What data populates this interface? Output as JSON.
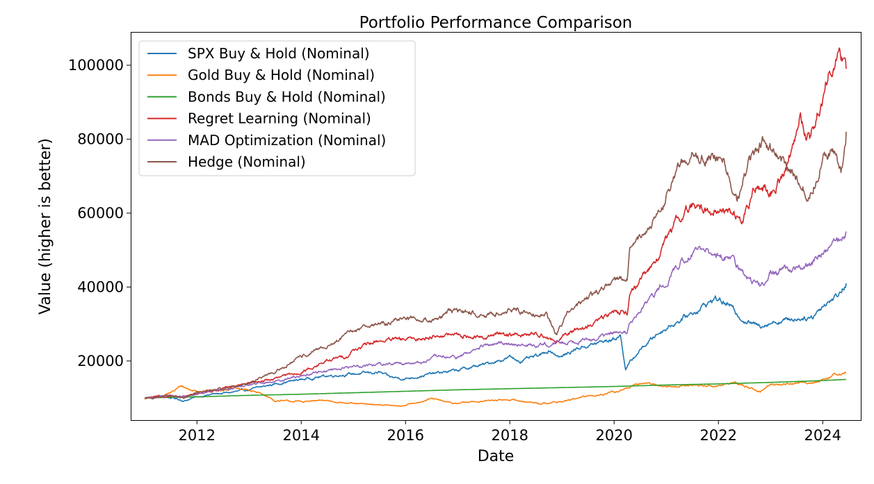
{
  "chart_data": {
    "type": "line",
    "title": "Portfolio Performance Comparison",
    "xlabel": "Date",
    "ylabel": "Value (higher is better)",
    "xlim": [
      2010.73,
      2024.73
    ],
    "ylim": [
      4000,
      109000
    ],
    "xticks": [
      2012,
      2014,
      2016,
      2018,
      2020,
      2022,
      2024
    ],
    "xtick_labels": [
      "2012",
      "2014",
      "2016",
      "2018",
      "2020",
      "2022",
      "2024"
    ],
    "yticks": [
      20000,
      40000,
      60000,
      80000,
      100000
    ],
    "ytick_labels": [
      "20000",
      "40000",
      "60000",
      "80000",
      "100000"
    ],
    "grid": false,
    "legend_position": "top-left",
    "series": [
      {
        "name": "SPX Buy & Hold (Nominal)",
        "color": "#1f77b4",
        "x": [
          2011.0,
          2011.3,
          2011.6,
          2011.75,
          2012.0,
          2012.3,
          2012.6,
          2013.0,
          2013.5,
          2014.0,
          2014.5,
          2015.0,
          2015.5,
          2015.7,
          2016.0,
          2016.5,
          2017.0,
          2017.5,
          2018.0,
          2018.2,
          2018.6,
          2018.75,
          2018.98,
          2019.3,
          2019.6,
          2020.0,
          2020.12,
          2020.22,
          2020.5,
          2020.8,
          2021.0,
          2021.5,
          2021.95,
          2022.2,
          2022.5,
          2022.75,
          2023.0,
          2023.5,
          2023.8,
          2024.0,
          2024.3,
          2024.45
        ],
        "values": [
          10000,
          10500,
          9800,
          9200,
          10300,
          11000,
          11400,
          12200,
          13800,
          15000,
          16000,
          16500,
          16900,
          15600,
          15200,
          16500,
          17500,
          19000,
          21000,
          20000,
          21500,
          23000,
          21000,
          23500,
          24500,
          26000,
          27000,
          18000,
          23000,
          27000,
          29000,
          33000,
          37000,
          35000,
          31000,
          29500,
          30500,
          31500,
          32000,
          35000,
          38000,
          41000
        ]
      },
      {
        "name": "Gold Buy & Hold (Nominal)",
        "color": "#ff7f0e",
        "x": [
          2011.0,
          2011.3,
          2011.55,
          2011.7,
          2011.9,
          2012.2,
          2012.7,
          2013.0,
          2013.3,
          2013.5,
          2014.0,
          2014.5,
          2015.0,
          2015.5,
          2015.9,
          2016.5,
          2016.9,
          2017.5,
          2018.0,
          2018.6,
          2019.0,
          2019.5,
          2020.0,
          2020.6,
          2020.8,
          2021.0,
          2021.5,
          2022.0,
          2022.3,
          2022.8,
          2023.0,
          2023.5,
          2024.0,
          2024.25,
          2024.45
        ],
        "values": [
          9700,
          10400,
          11800,
          13300,
          12000,
          12000,
          12500,
          12100,
          10800,
          9200,
          9000,
          9300,
          8400,
          8200,
          7700,
          9800,
          8500,
          9200,
          9500,
          8500,
          9000,
          10500,
          11500,
          14200,
          13500,
          13000,
          13500,
          13200,
          14200,
          11800,
          13500,
          14000,
          14500,
          16500,
          16800
        ]
      },
      {
        "name": "Bonds Buy & Hold (Nominal)",
        "color": "#2ca02c",
        "x": [
          2011.0,
          2012.0,
          2013.0,
          2014.0,
          2015.0,
          2016.0,
          2017.0,
          2018.0,
          2019.0,
          2020.0,
          2021.0,
          2022.0,
          2023.0,
          2024.0,
          2024.45
        ],
        "values": [
          10000,
          10300,
          10700,
          11000,
          11400,
          11800,
          12200,
          12500,
          12800,
          13100,
          13500,
          13800,
          14200,
          14700,
          15000
        ]
      },
      {
        "name": "Regret Learning (Nominal)",
        "color": "#d62728",
        "x": [
          2011.0,
          2011.5,
          2011.75,
          2012.0,
          2012.5,
          2013.0,
          2013.5,
          2014.0,
          2014.5,
          2014.9,
          2015.0,
          2015.5,
          2015.9,
          2016.3,
          2016.6,
          2017.0,
          2017.5,
          2017.8,
          2018.2,
          2018.6,
          2018.9,
          2019.2,
          2019.6,
          2020.0,
          2020.25,
          2020.3,
          2020.6,
          2020.9,
          2021.2,
          2021.5,
          2021.9,
          2022.2,
          2022.45,
          2022.75,
          2023.0,
          2023.3,
          2023.55,
          2023.75,
          2024.0,
          2024.25,
          2024.45
        ],
        "values": [
          10000,
          10500,
          10200,
          11200,
          12500,
          14000,
          15200,
          17000,
          20000,
          21500,
          23000,
          25500,
          25700,
          26000,
          27000,
          27000,
          26200,
          27500,
          27000,
          27500,
          25000,
          28000,
          30000,
          33500,
          33500,
          38000,
          43000,
          50000,
          58000,
          62000,
          60500,
          60500,
          58000,
          68000,
          65000,
          72000,
          86000,
          80000,
          92000,
          104000,
          99000
        ]
      },
      {
        "name": "MAD Optimization (Nominal)",
        "color": "#9467bd",
        "x": [
          2011.0,
          2011.5,
          2011.75,
          2012.0,
          2012.5,
          2013.0,
          2013.5,
          2014.0,
          2014.5,
          2015.0,
          2015.5,
          2015.9,
          2016.3,
          2016.6,
          2017.0,
          2017.5,
          2018.0,
          2018.3,
          2018.6,
          2019.0,
          2019.3,
          2019.6,
          2020.0,
          2020.25,
          2020.3,
          2020.6,
          2021.0,
          2021.5,
          2021.9,
          2022.2,
          2022.5,
          2022.8,
          2023.0,
          2023.5,
          2023.8,
          2024.0,
          2024.3,
          2024.45
        ],
        "values": [
          10000,
          10500,
          10200,
          11000,
          12200,
          13500,
          14600,
          16000,
          17500,
          18500,
          19200,
          19500,
          19500,
          21000,
          21000,
          24000,
          25000,
          24000,
          24500,
          25000,
          25500,
          26000,
          27500,
          27500,
          30000,
          35000,
          42000,
          50000,
          48500,
          48500,
          43000,
          40000,
          44000,
          45000,
          46500,
          49000,
          53000,
          55000
        ]
      },
      {
        "name": "Hedge (Nominal)",
        "color": "#8c564b",
        "x": [
          2011.0,
          2011.5,
          2011.75,
          2012.0,
          2012.5,
          2013.0,
          2013.5,
          2014.0,
          2014.5,
          2015.0,
          2015.3,
          2015.6,
          2016.0,
          2016.5,
          2016.8,
          2017.2,
          2017.5,
          2018.0,
          2018.4,
          2018.7,
          2018.9,
          2019.1,
          2019.5,
          2020.0,
          2020.25,
          2020.3,
          2020.6,
          2020.9,
          2021.2,
          2021.5,
          2021.9,
          2022.1,
          2022.35,
          2022.55,
          2022.9,
          2023.2,
          2023.5,
          2023.75,
          2024.0,
          2024.2,
          2024.35,
          2024.45
        ],
        "values": [
          10000,
          10500,
          10000,
          11500,
          12500,
          14000,
          17000,
          21000,
          24000,
          28000,
          30000,
          30000,
          32000,
          31000,
          33000,
          33500,
          32000,
          34000,
          33000,
          33000,
          27000,
          33000,
          37000,
          42000,
          42000,
          50000,
          55000,
          60000,
          72000,
          76000,
          75000,
          75000,
          63000,
          73000,
          80000,
          73000,
          70000,
          65000,
          75000,
          78000,
          71000,
          82000
        ]
      }
    ]
  }
}
